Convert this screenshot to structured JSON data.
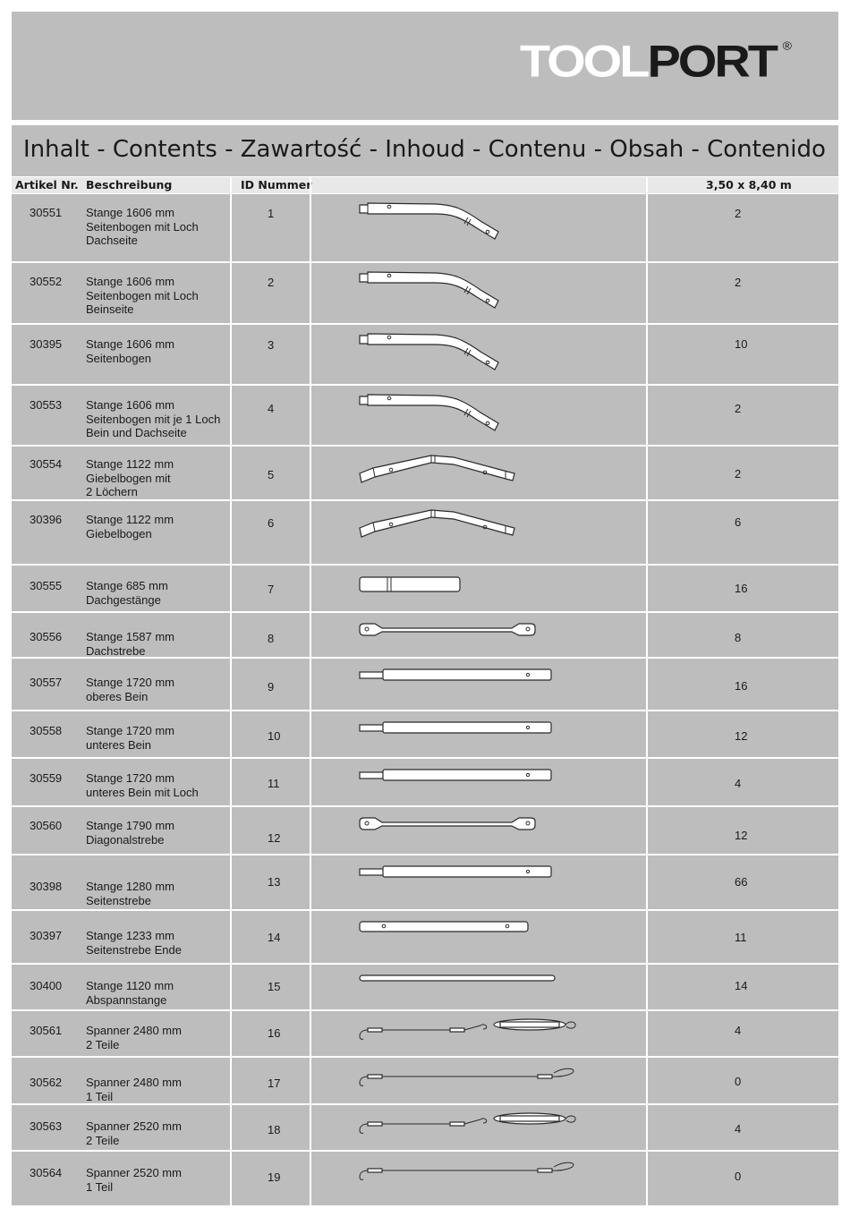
{
  "header": {
    "logo_tool": "TOOL",
    "logo_port": "PORT",
    "logo_mark": "®"
  },
  "title": "Inhalt - Contents - Zawartość - Inhoud - Contenu - Obsah - Contenido",
  "columns": {
    "article": "Artikel Nr.",
    "description": "Beschreibung",
    "id": "ID Nummer",
    "image": "",
    "quantity": "3,50 x 8,40 m"
  },
  "rows": [
    {
      "article": "30551",
      "description": "Stange 1606 mm\nSeitenbogen mit Loch\nDachseite",
      "id": "1",
      "qty": "2",
      "icon": "bent-pole-icon"
    },
    {
      "article": "30552",
      "description": "Stange 1606 mm\nSeitenbogen mit Loch\nBeinseite",
      "id": "2",
      "qty": "2",
      "icon": "bent-pole-icon"
    },
    {
      "article": "30395",
      "description": "Stange 1606 mm\nSeitenbogen",
      "id": "3",
      "qty": "10",
      "icon": "bent-pole-icon"
    },
    {
      "article": "30553",
      "description": "Stange 1606 mm\nSeitenbogen mit je 1 Loch\nBein und Dachseite",
      "id": "4",
      "qty": "2",
      "icon": "bent-pole-icon"
    },
    {
      "article": "30554",
      "description": "Stange 1122 mm\nGiebelbogen mit\n2 Löchern",
      "id": "5",
      "qty": "2",
      "icon": "gable-pole-icon"
    },
    {
      "article": "30396",
      "description": "Stange 1122 mm\nGiebelbogen",
      "id": "6",
      "qty": "6",
      "icon": "gable-pole-icon"
    },
    {
      "article": "30555",
      "description": "Stange 685 mm\nDachgestänge",
      "id": "7",
      "qty": "16",
      "icon": "short-pole-icon"
    },
    {
      "article": "30556",
      "description": "Stange 1587 mm\nDachstrebe",
      "id": "8",
      "qty": "8",
      "icon": "strut-icon"
    },
    {
      "article": "30557",
      "description": "Stange 1720 mm\noberes Bein",
      "id": "9",
      "qty": "16",
      "icon": "leg-pole-icon"
    },
    {
      "article": "30558",
      "description": "Stange 1720 mm\nunteres Bein",
      "id": "10",
      "qty": "12",
      "icon": "leg-pole-icon"
    },
    {
      "article": "30559",
      "description": "Stange 1720 mm\nunteres Bein mit Loch",
      "id": "11",
      "qty": "4",
      "icon": "leg-pole-icon"
    },
    {
      "article": "30560",
      "description": "Stange 1790 mm\nDiagonalstrebe",
      "id": "12",
      "qty": "12",
      "icon": "strut-icon"
    },
    {
      "article": "30398",
      "description": "Stange 1280 mm\nSeitenstrebe",
      "id": "13",
      "qty": "66",
      "icon": "leg-pole-icon"
    },
    {
      "article": "30397",
      "description": "Stange 1233 mm\nSeitenstrebe Ende",
      "id": "14",
      "qty": "11",
      "icon": "side-end-pole-icon"
    },
    {
      "article": "30400",
      "description": "Stange 1120 mm\nAbspannstange",
      "id": "15",
      "qty": "14",
      "icon": "thin-rod-icon"
    },
    {
      "article": "30561",
      "description": "Spanner 2480 mm\n2 Teile",
      "id": "16",
      "qty": "4",
      "icon": "turnbuckle-cable-icon"
    },
    {
      "article": "30562",
      "description": "Spanner 2480 mm\n1 Teil",
      "id": "17",
      "qty": "0",
      "icon": "cable-icon"
    },
    {
      "article": "30563",
      "description": "Spanner 2520 mm\n2 Teile",
      "id": "18",
      "qty": "4",
      "icon": "turnbuckle-cable-icon"
    },
    {
      "article": "30564",
      "description": "Spanner 2520 mm\n1 Teil",
      "id": "19",
      "qty": "0",
      "icon": "cable-icon"
    }
  ]
}
